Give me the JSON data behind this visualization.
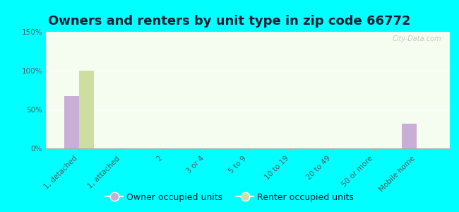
{
  "title": "Owners and renters by unit type in zip code 66772",
  "categories": [
    "1, detached",
    "1, attached",
    "2",
    "3 or 4",
    "5 to 9",
    "10 to 19",
    "20 to 49",
    "50 or more",
    "Mobile home"
  ],
  "owner_values": [
    67,
    0,
    0,
    0,
    0,
    0,
    0,
    0,
    32
  ],
  "renter_values": [
    100,
    0,
    0,
    0,
    0,
    0,
    0,
    0,
    0
  ],
  "owner_color": "#c9aed6",
  "renter_color": "#cddea0",
  "background_color": "#00ffff",
  "plot_bg_top": "#e8f5e0",
  "plot_bg_bottom": "#f5fdf0",
  "ylim": [
    0,
    150
  ],
  "yticks": [
    0,
    50,
    100,
    150
  ],
  "ytick_labels": [
    "0%",
    "50%",
    "100%",
    "150%"
  ],
  "bar_width": 0.35,
  "watermark": "City-Data.com",
  "legend_owner": "Owner occupied units",
  "legend_renter": "Renter occupied units",
  "title_fontsize": 13,
  "tick_fontsize": 7.5,
  "legend_fontsize": 9,
  "title_color": "#1a1a2e",
  "tick_label_color": "#555555"
}
